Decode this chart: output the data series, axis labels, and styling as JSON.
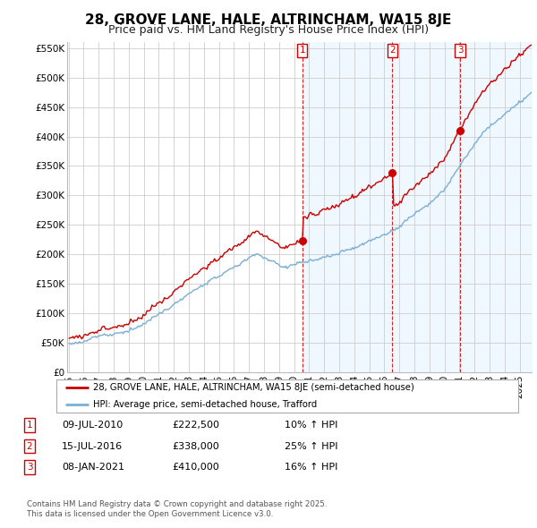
{
  "title": "28, GROVE LANE, HALE, ALTRINCHAM, WA15 8JE",
  "subtitle": "Price paid vs. HM Land Registry's House Price Index (HPI)",
  "legend_label_red": "28, GROVE LANE, HALE, ALTRINCHAM, WA15 8JE (semi-detached house)",
  "legend_label_blue": "HPI: Average price, semi-detached house, Trafford",
  "transactions": [
    {
      "label": "1",
      "date": "09-JUL-2010",
      "price": 222500,
      "pct": "10% ↑ HPI"
    },
    {
      "label": "2",
      "date": "15-JUL-2016",
      "price": 338000,
      "pct": "25% ↑ HPI"
    },
    {
      "label": "3",
      "date": "08-JAN-2021",
      "price": 410000,
      "pct": "16% ↑ HPI"
    }
  ],
  "footnote": "Contains HM Land Registry data © Crown copyright and database right 2025.\nThis data is licensed under the Open Government Licence v3.0.",
  "ylim": [
    0,
    560000
  ],
  "yticks": [
    0,
    50000,
    100000,
    150000,
    200000,
    250000,
    300000,
    350000,
    400000,
    450000,
    500000,
    550000
  ],
  "color_red": "#cc0000",
  "color_blue": "#7bafd4",
  "color_blue_fill": "#ddeeff",
  "background_color": "#ffffff",
  "grid_color": "#cccccc",
  "title_fontsize": 11,
  "subtitle_fontsize": 9,
  "tick_fontsize": 7.5,
  "vline_color": "#cc0000",
  "trans_times": [
    2010.54,
    2016.54,
    2021.04
  ],
  "trans_prices": [
    222500,
    338000,
    410000
  ]
}
